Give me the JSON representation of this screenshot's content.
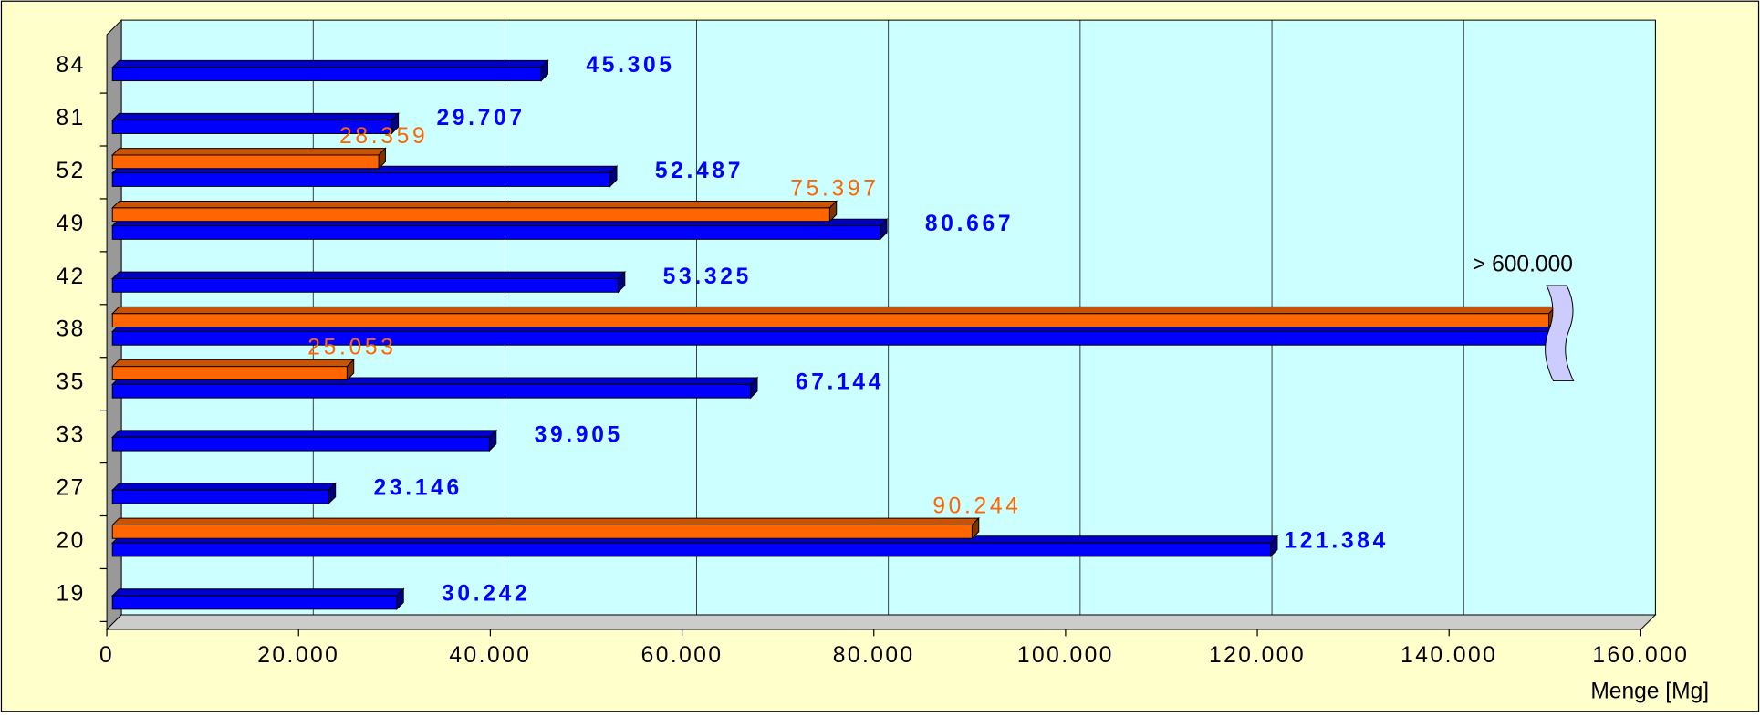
{
  "chart_data": {
    "type": "bar3d_horizontal",
    "categories": [
      "19",
      "20",
      "27",
      "33",
      "35",
      "38",
      "42",
      "49",
      "52",
      "81",
      "84"
    ],
    "series": [
      {
        "color": "#0000ff",
        "values": [
          30242,
          121384,
          23146,
          39905,
          67144,
          600000,
          53325,
          80667,
          52487,
          29707,
          45305
        ],
        "value_labels": [
          "30.242",
          "121.384",
          "23.146",
          "39.905",
          "67.144",
          null,
          "53.325",
          "80.667",
          "52.487",
          "29.707",
          "45.305"
        ]
      },
      {
        "color": "#ff6600",
        "values": [
          null,
          90244,
          null,
          null,
          25053,
          600000,
          null,
          75397,
          28359,
          null,
          null
        ],
        "value_labels": [
          null,
          "90.244",
          null,
          null,
          "25.053",
          null,
          null,
          "75.397",
          "28.359",
          null,
          null
        ]
      }
    ],
    "annotation": "> 600.000",
    "xlabel": "Menge [Mg]",
    "xlim": [
      0,
      160000
    ],
    "xticks": [
      0,
      {
        "value": 20000,
        "label": "20.000"
      },
      {
        "value": 40000,
        "label": "40.000"
      },
      {
        "value": 60000,
        "label": "60.000"
      },
      {
        "value": 80000,
        "label": "80.000"
      },
      {
        "value": 100000,
        "label": "100.000"
      },
      {
        "value": 120000,
        "label": "120.000"
      },
      {
        "value": 140000,
        "label": "140.000"
      },
      {
        "value": 160000,
        "label": "160.000"
      }
    ],
    "grid": true
  }
}
